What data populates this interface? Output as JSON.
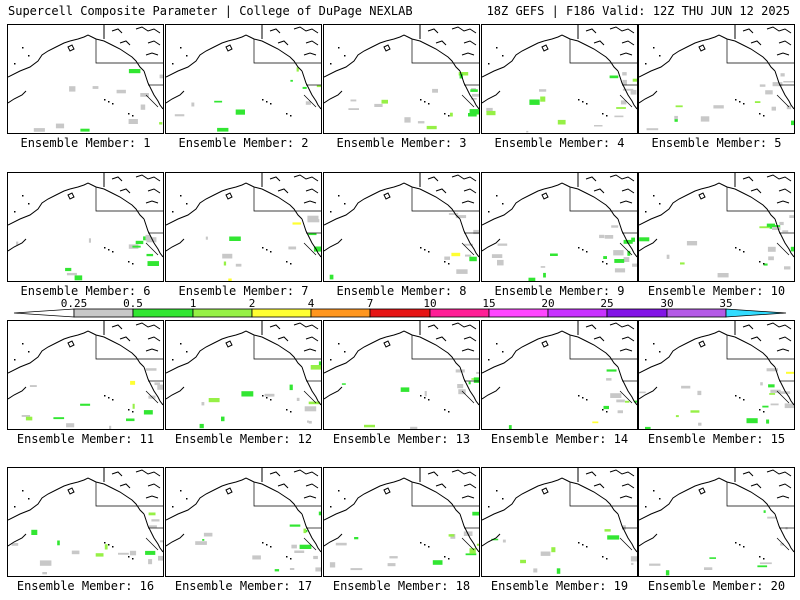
{
  "header": {
    "left": "Supercell Composite Parameter | College of DuPage NEXLAB",
    "right": "18Z GEFS | F186 Valid: 12Z THU JUN 12 2025"
  },
  "legend": {
    "ticks": [
      "0.25",
      "0.5",
      "1",
      "2",
      "4",
      "7",
      "10",
      "15",
      "20",
      "25",
      "30",
      "35"
    ],
    "colors": [
      "#ffffff",
      "#c8c8c8",
      "#32e632",
      "#96f046",
      "#ffff32",
      "#ff961e",
      "#e61414",
      "#ff1e96",
      "#ff46ff",
      "#c832ff",
      "#8214e6",
      "#b45ae6",
      "#32dcff"
    ]
  },
  "colors": {
    "light": "#c8c8c8",
    "green": "#32e632",
    "lime": "#96f046",
    "yellow": "#ffff32",
    "outline": "#000000"
  },
  "panels": [
    {
      "label": "Ensemble Member: 1"
    },
    {
      "label": "Ensemble Member: 2"
    },
    {
      "label": "Ensemble Member: 3"
    },
    {
      "label": "Ensemble Member: 4"
    },
    {
      "label": "Ensemble Member: 5"
    },
    {
      "label": "Ensemble Member: 6"
    },
    {
      "label": "Ensemble Member: 7"
    },
    {
      "label": "Ensemble Member: 8"
    },
    {
      "label": "Ensemble Member: 9"
    },
    {
      "label": "Ensemble Member: 10"
    },
    {
      "label": "Ensemble Member: 11"
    },
    {
      "label": "Ensemble Member: 12"
    },
    {
      "label": "Ensemble Member: 13"
    },
    {
      "label": "Ensemble Member: 14"
    },
    {
      "label": "Ensemble Member: 15"
    },
    {
      "label": "Ensemble Member: 16"
    },
    {
      "label": "Ensemble Member: 17"
    },
    {
      "label": "Ensemble Member: 18"
    },
    {
      "label": "Ensemble Member: 19"
    },
    {
      "label": "Ensemble Member: 20"
    }
  ]
}
